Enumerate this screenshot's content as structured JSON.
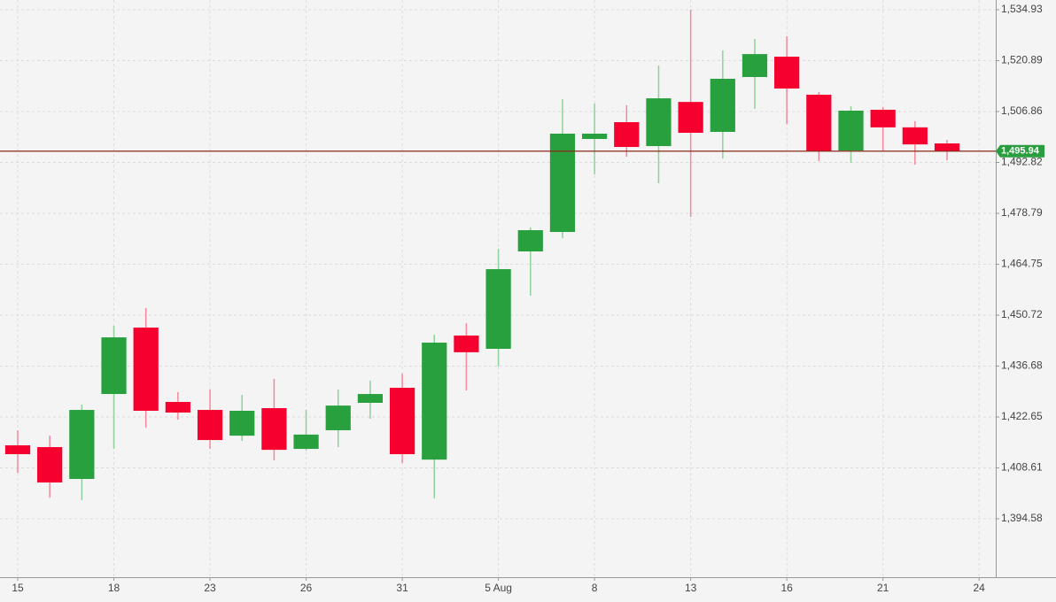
{
  "chart_data": {
    "type": "candlestick",
    "open": [
      1414.84,
      1414.35,
      1405.57,
      1428.99,
      1447.3,
      1426.8,
      1424.6,
      1417.5,
      1425.09,
      1413.86,
      1419.0,
      1426.56,
      1430.7,
      1410.9,
      1445.1,
      1441.45,
      1468.3,
      1473.66,
      1499.3,
      1503.93,
      1497.34,
      1509.5,
      1501.25,
      1516.38,
      1521.99,
      1511.5,
      1496.1,
      1507.35,
      1502.5,
      1498.07
    ],
    "high": [
      1418.99,
      1417.5,
      1426.07,
      1447.79,
      1452.67,
      1429.5,
      1430.2,
      1428.75,
      1433.15,
      1424.6,
      1430.2,
      1432.66,
      1434.6,
      1445.35,
      1448.5,
      1469.0,
      1474.9,
      1510.3,
      1509.06,
      1508.6,
      1519.55,
      1534.93,
      1523.7,
      1526.9,
      1527.6,
      1512.2,
      1508.3,
      1508.08,
      1504.2,
      1499.05
    ],
    "low": [
      1407.27,
      1400.4,
      1399.7,
      1413.86,
      1419.7,
      1421.9,
      1413.86,
      1416.06,
      1410.7,
      1413.4,
      1414.35,
      1422.17,
      1409.96,
      1400.2,
      1429.98,
      1436.6,
      1456.1,
      1471.96,
      1489.5,
      1494.4,
      1487.09,
      1477.8,
      1493.9,
      1507.6,
      1503.4,
      1493.2,
      1492.7,
      1496.1,
      1492.2,
      1493.4
    ],
    "close": [
      1412.4,
      1404.6,
      1424.6,
      1444.6,
      1424.36,
      1423.87,
      1416.3,
      1424.36,
      1413.6,
      1417.8,
      1425.8,
      1428.99,
      1412.4,
      1443.15,
      1440.5,
      1463.4,
      1474.15,
      1500.76,
      1500.76,
      1497.1,
      1510.5,
      1501.0,
      1515.89,
      1522.7,
      1513.2,
      1495.9,
      1507.1,
      1502.5,
      1497.8,
      1495.9
    ],
    "up_color": "#27a03d",
    "down_color": "#f5002f",
    "up_wick_color": "#8fd19a",
    "down_wick_color": "#f5889c",
    "xlim": [
      -0.553,
      30.52
    ],
    "xticks": [
      {
        "value": 0,
        "label": "15"
      },
      {
        "value": 3,
        "label": "18"
      },
      {
        "value": 6,
        "label": "23"
      },
      {
        "value": 9,
        "label": "26"
      },
      {
        "value": 12,
        "label": "31"
      },
      {
        "value": 15,
        "label": "5 Aug"
      },
      {
        "value": 18,
        "label": "8"
      },
      {
        "value": 21,
        "label": "13"
      },
      {
        "value": 24,
        "label": "16"
      },
      {
        "value": 27,
        "label": "21"
      },
      {
        "value": 30,
        "label": "24"
      }
    ],
    "ylim": [
      1378.48,
      1537.61
    ],
    "yticks": [
      {
        "value": 1394.58,
        "label": "1,394.58"
      },
      {
        "value": 1408.61,
        "label": "1,408.61"
      },
      {
        "value": 1422.65,
        "label": "1,422.65"
      },
      {
        "value": 1436.68,
        "label": "1,436.68"
      },
      {
        "value": 1450.72,
        "label": "1,450.72"
      },
      {
        "value": 1464.75,
        "label": "1,464.75"
      },
      {
        "value": 1478.79,
        "label": "1,478.79"
      },
      {
        "value": 1492.82,
        "label": "1,492.82"
      },
      {
        "value": 1506.86,
        "label": "1,506.86"
      },
      {
        "value": 1520.89,
        "label": "1,520.89"
      },
      {
        "value": 1534.93,
        "label": "1,534.93"
      }
    ],
    "last_price": {
      "value": 1495.94,
      "label": "1,495.94"
    },
    "last_price_color": "#8b2a1a",
    "last_price_tag_color": "#2a9d3e",
    "grid": true
  }
}
